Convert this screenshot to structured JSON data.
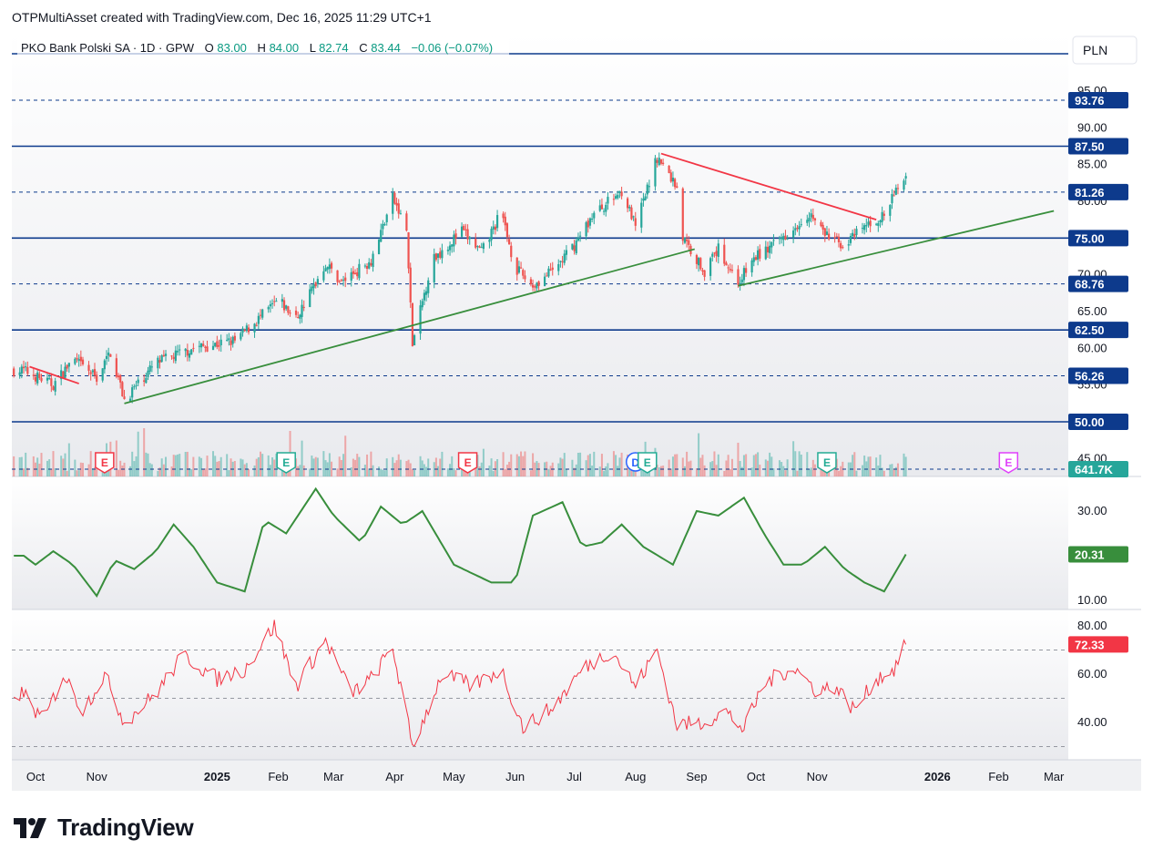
{
  "header": {
    "attribution": "OTPMultiAsset created with TradingView.com, Dec 16, 2025 11:29 UTC+1"
  },
  "footer": {
    "brand": "TradingView"
  },
  "legend": {
    "symbol": "PKO Bank Polski SA · 1D · GPW",
    "o_label": "O",
    "o_value": "83.00",
    "h_label": "H",
    "h_value": "84.00",
    "l_label": "L",
    "l_value": "82.74",
    "c_label": "C",
    "c_value": "83.44",
    "change": "−0.06 (−0.07%)"
  },
  "currency": "PLN",
  "colors": {
    "up": "#26a69a",
    "down": "#ef5350",
    "level_line": "#0d3a8c",
    "trend_green": "#388e3c",
    "trend_red": "#f23645",
    "adx_line": "#388e3c",
    "rsi_line": "#f23645",
    "volume_badge": "#26a69a",
    "price_badge": "#0d3a8c"
  },
  "chart_data": [
    {
      "type": "candlestick",
      "name": "price",
      "x_axis_labels": [
        "Oct",
        "Nov",
        "2025",
        "Feb",
        "Mar",
        "Apr",
        "May",
        "Jun",
        "Jul",
        "Aug",
        "Sep",
        "Oct",
        "Nov",
        "2026",
        "Feb",
        "Mar"
      ],
      "y_ticks": [
        "95.00",
        "90.00",
        "85.00",
        "80.00",
        "75.00",
        "70.00",
        "65.00",
        "60.00",
        "55.00",
        "45.00"
      ],
      "ylim": [
        44,
        100
      ],
      "last_close": 83.44,
      "horizontal_levels": [
        {
          "value": 93.76,
          "label": "93.76",
          "style": "dashed"
        },
        {
          "value": 87.5,
          "label": "87.50",
          "style": "solid"
        },
        {
          "value": 81.26,
          "label": "81.26",
          "style": "dashed"
        },
        {
          "value": 75.0,
          "label": "75.00",
          "style": "solid"
        },
        {
          "value": 68.76,
          "label": "68.76",
          "style": "dashed"
        },
        {
          "value": 62.5,
          "label": "62.50",
          "style": "solid"
        },
        {
          "value": 56.26,
          "label": "56.26",
          "style": "dashed"
        },
        {
          "value": 50.0,
          "label": "50.00",
          "style": "solid"
        }
      ],
      "trendlines": [
        {
          "color": "green",
          "from": [
            "2024-11-15",
            52.5
          ],
          "to": [
            "2025-08-31",
            73.5
          ]
        },
        {
          "color": "green",
          "from": [
            "2025-09-22",
            68.5
          ],
          "to": [
            "2026-03-01",
            78.7
          ]
        },
        {
          "color": "red",
          "from": [
            "2025-08-14",
            86.5
          ],
          "to": [
            "2025-12-01",
            77.5
          ]
        },
        {
          "color": "red",
          "from": [
            "2024-09-28",
            57.5
          ],
          "to": [
            "2024-10-23",
            55.2
          ]
        }
      ],
      "keypoints": [
        {
          "date": "2024-09-25",
          "close": 57.0
        },
        {
          "date": "2024-10-10",
          "close": 55.0
        },
        {
          "date": "2024-10-20",
          "close": 58.5
        },
        {
          "date": "2024-11-01",
          "close": 56.0
        },
        {
          "date": "2024-11-08",
          "close": 59.5
        },
        {
          "date": "2024-11-15",
          "close": 53.0
        },
        {
          "date": "2024-12-01",
          "close": 58.0
        },
        {
          "date": "2024-12-20",
          "close": 60.0
        },
        {
          "date": "2025-01-10",
          "close": 61.0
        },
        {
          "date": "2025-02-01",
          "close": 66.5
        },
        {
          "date": "2025-02-10",
          "close": 64.0
        },
        {
          "date": "2025-02-25",
          "close": 71.5
        },
        {
          "date": "2025-03-05",
          "close": 69.0
        },
        {
          "date": "2025-03-20",
          "close": 72.0
        },
        {
          "date": "2025-03-31",
          "close": 80.5
        },
        {
          "date": "2025-04-07",
          "close": 76.0
        },
        {
          "date": "2025-04-10",
          "close": 60.5
        },
        {
          "date": "2025-04-20",
          "close": 72.0
        },
        {
          "date": "2025-05-05",
          "close": 76.0
        },
        {
          "date": "2025-05-15",
          "close": 73.0
        },
        {
          "date": "2025-05-25",
          "close": 78.5
        },
        {
          "date": "2025-06-01",
          "close": 71.0
        },
        {
          "date": "2025-06-10",
          "close": 68.5
        },
        {
          "date": "2025-06-20",
          "close": 70.5
        },
        {
          "date": "2025-07-01",
          "close": 74.0
        },
        {
          "date": "2025-07-10",
          "close": 78.0
        },
        {
          "date": "2025-07-25",
          "close": 81.5
        },
        {
          "date": "2025-08-01",
          "close": 76.5
        },
        {
          "date": "2025-08-12",
          "close": 86.0
        },
        {
          "date": "2025-08-22",
          "close": 82.0
        },
        {
          "date": "2025-08-25",
          "close": 75.0
        },
        {
          "date": "2025-09-05",
          "close": 70.5
        },
        {
          "date": "2025-09-12",
          "close": 73.5
        },
        {
          "date": "2025-09-22",
          "close": 69.0
        },
        {
          "date": "2025-10-01",
          "close": 72.5
        },
        {
          "date": "2025-10-10",
          "close": 74.0
        },
        {
          "date": "2025-10-20",
          "close": 76.5
        },
        {
          "date": "2025-10-28",
          "close": 78.5
        },
        {
          "date": "2025-11-05",
          "close": 75.5
        },
        {
          "date": "2025-11-15",
          "close": 74.0
        },
        {
          "date": "2025-11-25",
          "close": 76.5
        },
        {
          "date": "2025-12-05",
          "close": 78.0
        },
        {
          "date": "2025-12-12",
          "close": 82.0
        },
        {
          "date": "2025-12-16",
          "close": 83.44
        }
      ]
    },
    {
      "type": "bar",
      "name": "volume",
      "last_value_label": "641.7K",
      "events": [
        {
          "date": "2024-11-05",
          "kind": "E",
          "color": "red"
        },
        {
          "date": "2025-02-05",
          "kind": "E",
          "color": "green"
        },
        {
          "date": "2025-05-08",
          "kind": "E",
          "color": "red"
        },
        {
          "date": "2025-08-01",
          "kind": "D",
          "color": "blue"
        },
        {
          "date": "2025-08-07",
          "kind": "E",
          "color": "green"
        },
        {
          "date": "2025-11-06",
          "kind": "E",
          "color": "green"
        },
        {
          "date": "2026-02-06",
          "kind": "E",
          "color": "magenta"
        }
      ]
    },
    {
      "type": "line",
      "name": "ADX",
      "y_ticks": [
        "30.00",
        "10.00"
      ],
      "ylim": [
        7,
        38
      ],
      "last_value": 20.31,
      "last_value_label": "20.31",
      "keypoints": [
        {
          "date": "2024-09-25",
          "value": 20
        },
        {
          "date": "2024-10-01",
          "value": 18
        },
        {
          "date": "2024-10-10",
          "value": 21
        },
        {
          "date": "2024-10-20",
          "value": 18
        },
        {
          "date": "2024-11-01",
          "value": 11
        },
        {
          "date": "2024-11-10",
          "value": 19
        },
        {
          "date": "2024-11-20",
          "value": 17
        },
        {
          "date": "2024-12-01",
          "value": 21
        },
        {
          "date": "2024-12-10",
          "value": 27
        },
        {
          "date": "2024-12-20",
          "value": 22
        },
        {
          "date": "2025-01-01",
          "value": 14
        },
        {
          "date": "2025-01-15",
          "value": 12
        },
        {
          "date": "2025-01-25",
          "value": 28
        },
        {
          "date": "2025-02-05",
          "value": 25
        },
        {
          "date": "2025-02-20",
          "value": 35
        },
        {
          "date": "2025-03-01",
          "value": 29
        },
        {
          "date": "2025-03-15",
          "value": 23
        },
        {
          "date": "2025-03-25",
          "value": 31
        },
        {
          "date": "2025-04-05",
          "value": 27
        },
        {
          "date": "2025-04-15",
          "value": 30
        },
        {
          "date": "2025-05-01",
          "value": 18
        },
        {
          "date": "2025-05-20",
          "value": 14
        },
        {
          "date": "2025-06-01",
          "value": 14
        },
        {
          "date": "2025-06-10",
          "value": 29
        },
        {
          "date": "2025-06-25",
          "value": 32
        },
        {
          "date": "2025-07-05",
          "value": 22
        },
        {
          "date": "2025-07-15",
          "value": 23
        },
        {
          "date": "2025-07-25",
          "value": 27
        },
        {
          "date": "2025-08-05",
          "value": 22
        },
        {
          "date": "2025-08-20",
          "value": 18
        },
        {
          "date": "2025-09-01",
          "value": 30
        },
        {
          "date": "2025-09-12",
          "value": 29
        },
        {
          "date": "2025-09-25",
          "value": 33
        },
        {
          "date": "2025-10-05",
          "value": 25
        },
        {
          "date": "2025-10-15",
          "value": 18
        },
        {
          "date": "2025-10-25",
          "value": 18
        },
        {
          "date": "2025-11-05",
          "value": 22
        },
        {
          "date": "2025-11-15",
          "value": 17
        },
        {
          "date": "2025-11-25",
          "value": 14
        },
        {
          "date": "2025-12-05",
          "value": 12
        },
        {
          "date": "2025-12-16",
          "value": 20.31
        }
      ]
    },
    {
      "type": "line",
      "name": "RSI",
      "y_ticks": [
        "80.00",
        "60.00",
        "40.00"
      ],
      "ylim": [
        25,
        85
      ],
      "reference_lines": [
        70,
        50,
        30
      ],
      "last_value": 72.33,
      "last_value_label": "72.33",
      "keypoints": [
        {
          "date": "2024-09-25",
          "value": 52
        },
        {
          "date": "2024-10-05",
          "value": 40
        },
        {
          "date": "2024-10-15",
          "value": 60
        },
        {
          "date": "2024-10-25",
          "value": 45
        },
        {
          "date": "2024-11-05",
          "value": 60
        },
        {
          "date": "2024-11-15",
          "value": 40
        },
        {
          "date": "2024-12-01",
          "value": 52
        },
        {
          "date": "2024-12-15",
          "value": 68
        },
        {
          "date": "2025-01-01",
          "value": 58
        },
        {
          "date": "2025-01-15",
          "value": 62
        },
        {
          "date": "2025-01-30",
          "value": 80
        },
        {
          "date": "2025-02-10",
          "value": 55
        },
        {
          "date": "2025-02-25",
          "value": 74
        },
        {
          "date": "2025-03-10",
          "value": 52
        },
        {
          "date": "2025-03-20",
          "value": 58
        },
        {
          "date": "2025-03-31",
          "value": 71
        },
        {
          "date": "2025-04-10",
          "value": 30
        },
        {
          "date": "2025-04-25",
          "value": 60
        },
        {
          "date": "2025-05-10",
          "value": 55
        },
        {
          "date": "2025-05-25",
          "value": 62
        },
        {
          "date": "2025-06-05",
          "value": 38
        },
        {
          "date": "2025-06-20",
          "value": 46
        },
        {
          "date": "2025-07-05",
          "value": 62
        },
        {
          "date": "2025-07-20",
          "value": 70
        },
        {
          "date": "2025-08-01",
          "value": 55
        },
        {
          "date": "2025-08-12",
          "value": 70
        },
        {
          "date": "2025-08-22",
          "value": 39
        },
        {
          "date": "2025-09-05",
          "value": 40
        },
        {
          "date": "2025-09-15",
          "value": 45
        },
        {
          "date": "2025-09-25",
          "value": 37
        },
        {
          "date": "2025-10-05",
          "value": 56
        },
        {
          "date": "2025-10-20",
          "value": 63
        },
        {
          "date": "2025-11-01",
          "value": 53
        },
        {
          "date": "2025-11-10",
          "value": 55
        },
        {
          "date": "2025-11-20",
          "value": 45
        },
        {
          "date": "2025-12-01",
          "value": 58
        },
        {
          "date": "2025-12-10",
          "value": 62
        },
        {
          "date": "2025-12-16",
          "value": 72.33
        }
      ]
    }
  ]
}
